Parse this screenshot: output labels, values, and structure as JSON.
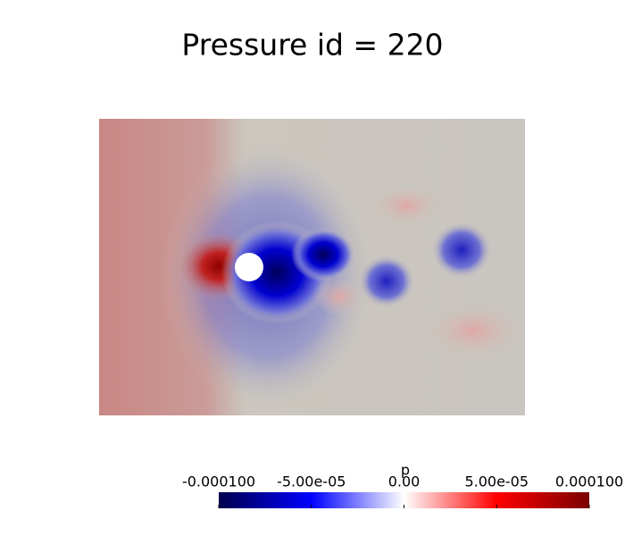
{
  "chart_data": {
    "type": "field",
    "title": "Pressure id = 220",
    "colorbar": {
      "label": "p",
      "lim": [
        -0.0001,
        0.0001
      ],
      "ticks": [
        {
          "value": -0.0001,
          "label": "-0.000100"
        },
        {
          "value": -5e-05,
          "label": "-5.00e-05"
        },
        {
          "value": 0,
          "label": "0.00"
        },
        {
          "value": 5e-05,
          "label": "5.00e-05"
        },
        {
          "value": 0.0001,
          "label": "0.000100"
        }
      ],
      "colors": [
        "#00004d",
        "#0000ff",
        "#ffffff",
        "#ff0000",
        "#7a0000"
      ]
    }
  }
}
